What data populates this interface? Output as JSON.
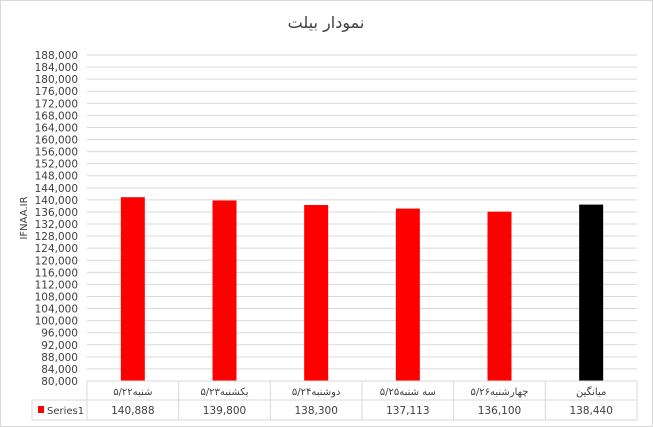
{
  "chart_data": {
    "type": "bar",
    "title": "نمودار بیلت",
    "xlabel": "",
    "ylabel": "IFNAA.IR",
    "ylim": [
      80000,
      188000
    ],
    "ytick_step": 4000,
    "grid": true,
    "categories": [
      "شنبه۵/۲۲",
      "یکشنبه۵/۲۳",
      "دوشنبه۵/۲۴",
      "سه شنبه۵/۲۵",
      "چهارشنبه۵/۲۶",
      "میانگین"
    ],
    "series": [
      {
        "name": "Series1",
        "values": [
          140888,
          139800,
          138300,
          137113,
          136100,
          138440
        ]
      }
    ],
    "value_labels": [
      "140,888",
      "139,800",
      "138,300",
      "137,113",
      "136,100",
      "138,440"
    ],
    "bar_colors": [
      "#ff0000",
      "#ff0000",
      "#ff0000",
      "#ff0000",
      "#ff0000",
      "#000000"
    ],
    "legend": "data-table"
  }
}
